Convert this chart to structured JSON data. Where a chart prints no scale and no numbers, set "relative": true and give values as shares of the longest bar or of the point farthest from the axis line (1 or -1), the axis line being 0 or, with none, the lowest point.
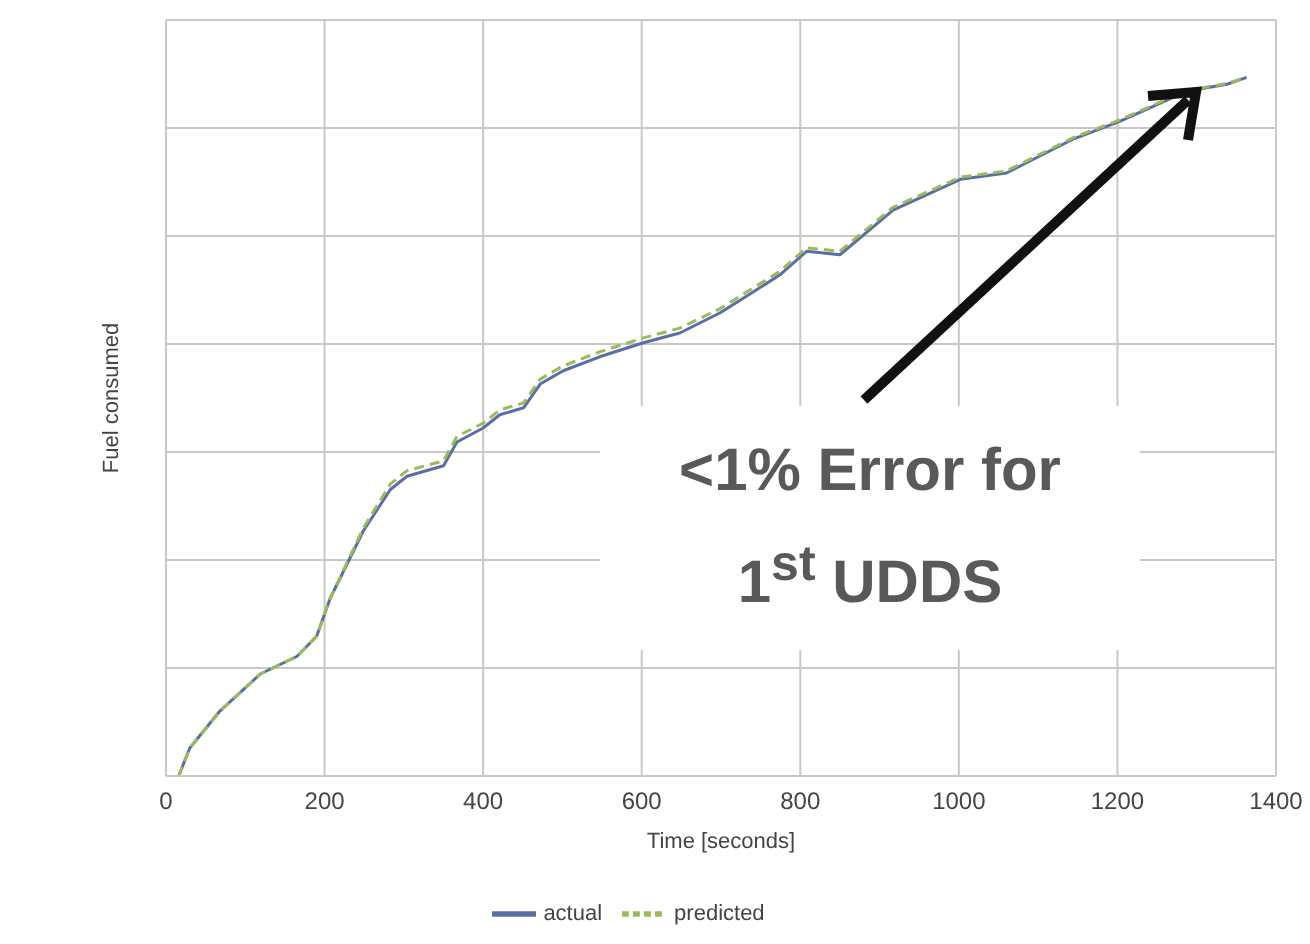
{
  "chart_data": {
    "type": "line",
    "relative": true,
    "xlabel": "Time [seconds]",
    "ylabel": "Fuel consumed",
    "xlim": [
      0,
      1400
    ],
    "xticks": [
      0,
      200,
      400,
      600,
      800,
      1000,
      1200,
      1400
    ],
    "grid": true,
    "legend": "bottom",
    "marker": "none",
    "annotations": [
      "<1% Error for 1$^{st}$ UDDS"
    ],
    "x": [
      16,
      30,
      68,
      119,
      165,
      190,
      207,
      249,
      283,
      304,
      350,
      367,
      400,
      421,
      451,
      472,
      501,
      547,
      602,
      648,
      699,
      741,
      774,
      808,
      850,
      917,
      1002,
      1060,
      1145,
      1203,
      1287,
      1338,
      1363
    ],
    "series": [
      {
        "name": "actual",
        "color": "#5a6ea6",
        "line_style": "solid",
        "values": [
          0,
          0.04,
          0.093,
          0.146,
          0.171,
          0.2,
          0.254,
          0.351,
          0.41,
          0.429,
          0.444,
          0.478,
          0.498,
          0.517,
          0.527,
          0.561,
          0.58,
          0.6,
          0.62,
          0.634,
          0.663,
          0.693,
          0.717,
          0.751,
          0.746,
          0.81,
          0.854,
          0.863,
          0.912,
          0.937,
          0.98,
          0.99,
          1
        ]
      },
      {
        "name": "predicted",
        "color": "#9bbb59",
        "line_style": "dashed",
        "values": [
          0,
          0.04,
          0.093,
          0.146,
          0.171,
          0.2,
          0.254,
          0.355,
          0.418,
          0.437,
          0.451,
          0.486,
          0.505,
          0.524,
          0.534,
          0.568,
          0.587,
          0.607,
          0.627,
          0.641,
          0.669,
          0.699,
          0.722,
          0.756,
          0.751,
          0.814,
          0.857,
          0.866,
          0.914,
          0.939,
          0.981,
          0.991,
          1
        ]
      }
    ]
  }
}
